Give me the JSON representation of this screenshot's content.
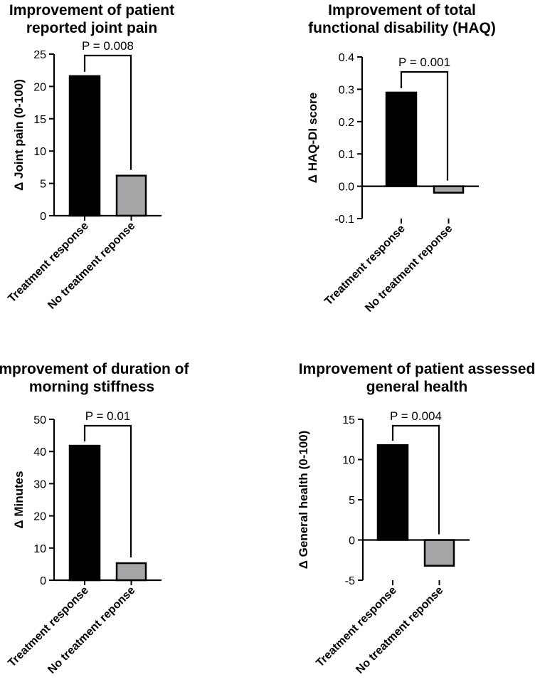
{
  "colors": {
    "treatment_bar": "#000000",
    "no_treatment_bar": "#a6a6a8",
    "axis": "#000000"
  },
  "chart_data": [
    {
      "type": "bar",
      "title_lines": [
        "Improvement of patient",
        "reported joint pain"
      ],
      "ylabel": "Δ Joint pain (0-100)",
      "categories": [
        "Treatment response",
        "No treatment reponse"
      ],
      "values": [
        21.6,
        6.2
      ],
      "ylim": [
        0,
        25
      ],
      "yticks": [
        "0",
        "5",
        "10",
        "15",
        "20",
        "25"
      ],
      "ytick_values": [
        0,
        5,
        10,
        15,
        20,
        25
      ],
      "annotation": "P = 0.008"
    },
    {
      "type": "bar",
      "title_lines": [
        "Improvement of total",
        "functional disability (HAQ)"
      ],
      "ylabel": "Δ HAQ-DI score",
      "categories": [
        "Treatment response",
        "No treatment reponse"
      ],
      "values": [
        0.29,
        -0.02
      ],
      "ylim": [
        -0.1,
        0.4
      ],
      "yticks": [
        "-0.1",
        "0.0",
        "0.1",
        "0.2",
        "0.3",
        "0.4"
      ],
      "ytick_values": [
        -0.1,
        0.0,
        0.1,
        0.2,
        0.3,
        0.4
      ],
      "annotation": "P = 0.001"
    },
    {
      "type": "bar",
      "title_lines": [
        "Improvement of duration of",
        "morning stiffness"
      ],
      "ylabel": "Δ  Minutes",
      "categories": [
        "Treatment response",
        "No treatment reponse"
      ],
      "values": [
        41.8,
        5.3
      ],
      "ylim": [
        0,
        50
      ],
      "yticks": [
        "0",
        "10",
        "20",
        "30",
        "40",
        "50"
      ],
      "ytick_values": [
        0,
        10,
        20,
        30,
        40,
        50
      ],
      "annotation": "P = 0.01"
    },
    {
      "type": "bar",
      "title_lines": [
        "Improvement of patient assessed",
        "general health"
      ],
      "ylabel": "Δ General health (0-100)",
      "categories": [
        "Treatment response",
        "No treatment reponse"
      ],
      "values": [
        11.8,
        -3.2
      ],
      "ylim": [
        -5,
        15
      ],
      "yticks": [
        "-5",
        "0",
        "5",
        "10",
        "15"
      ],
      "ytick_values": [
        -5,
        0,
        5,
        10,
        15
      ],
      "annotation": "P = 0.004"
    }
  ]
}
